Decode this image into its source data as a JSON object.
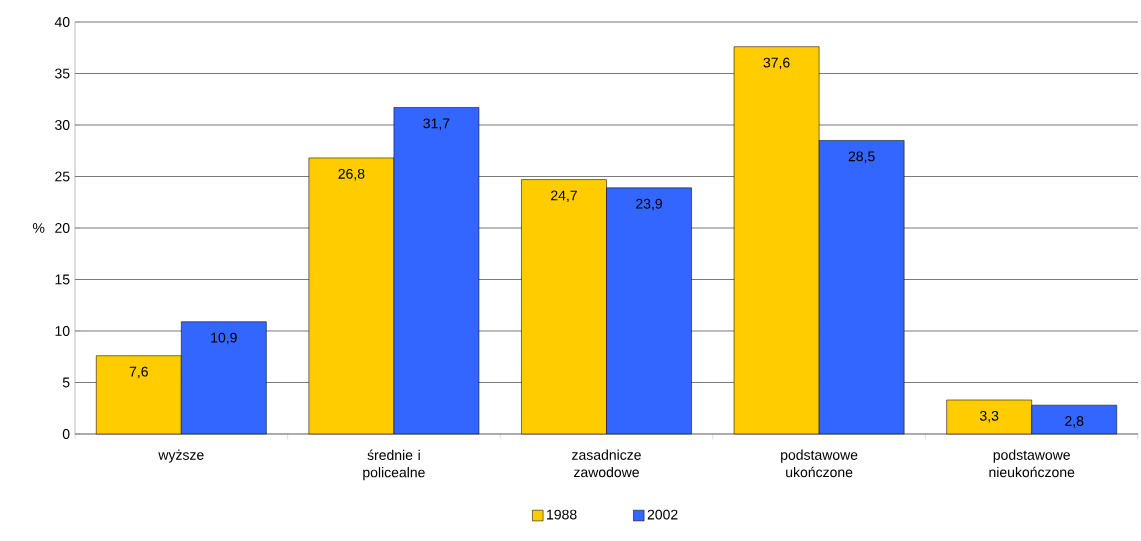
{
  "chart_data": {
    "type": "bar",
    "ylabel": "%",
    "categories": [
      "wyższe",
      "średnie i policealne",
      "zasadnicze zawodowe",
      "podstawowe ukończone",
      "podstawowe nieukończone"
    ],
    "series": [
      {
        "name": "1988",
        "color": "#ffcc00",
        "values": [
          7.6,
          26.8,
          24.7,
          37.6,
          3.3
        ],
        "value_labels": [
          "7,6",
          "26,8",
          "24,7",
          "37,6",
          "3,3"
        ]
      },
      {
        "name": "2002",
        "color": "#3366ff",
        "values": [
          10.9,
          31.7,
          23.9,
          28.5,
          2.8
        ],
        "value_labels": [
          "10,9",
          "31,7",
          "23,9",
          "28,5",
          "2,8"
        ]
      }
    ],
    "ylim": [
      0,
      40
    ],
    "yticks": [
      0,
      5,
      10,
      15,
      20,
      25,
      30,
      35,
      40
    ],
    "grid": "y",
    "legend": "bottom"
  }
}
